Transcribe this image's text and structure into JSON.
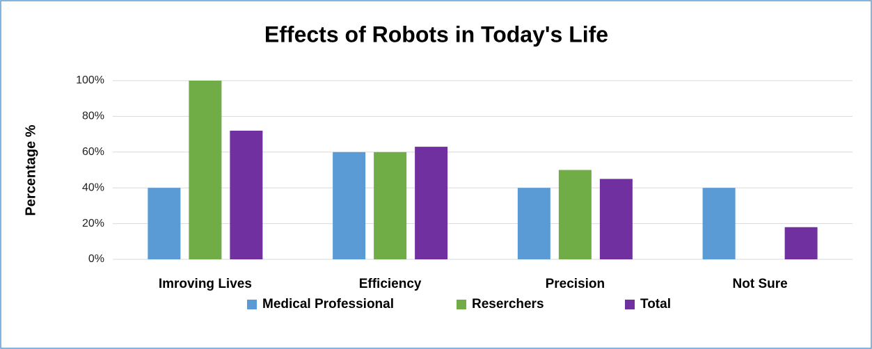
{
  "chart_data": {
    "type": "bar",
    "title": "Effects of Robots in Today's Life",
    "y_label": "Percentage %",
    "categories": [
      "Imroving Lives",
      "Efficiency",
      "Precision",
      "Not Sure"
    ],
    "series": [
      {
        "name": "Medical Professional",
        "color": "#5b9bd5",
        "values": [
          40,
          60,
          40,
          40
        ]
      },
      {
        "name": "Reserchers",
        "color": "#70ad47",
        "values": [
          100,
          60,
          50,
          0
        ]
      },
      {
        "name": "Total",
        "color": "#7030a0",
        "values": [
          72,
          63,
          45,
          18
        ]
      }
    ],
    "ylim": [
      0,
      100
    ],
    "yticks": [
      {
        "value": 0,
        "label": "0%"
      },
      {
        "value": 20,
        "label": "20%"
      },
      {
        "value": 40,
        "label": "40%"
      },
      {
        "value": 60,
        "label": "60%"
      },
      {
        "value": 80,
        "label": "80%"
      },
      {
        "value": 100,
        "label": "100%"
      }
    ],
    "grid": true,
    "legend": "bottom"
  }
}
